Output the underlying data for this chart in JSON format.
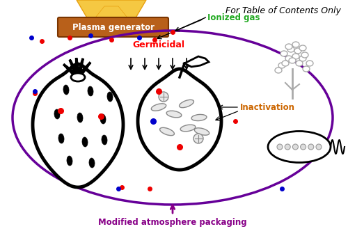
{
  "fig_width": 5.0,
  "fig_height": 3.29,
  "dpi": 100,
  "bg_color": "#ffffff",
  "title_text": "For Table of Contents Only",
  "title_color": "#000000",
  "title_fontsize": 9,
  "plasma_box_text": "Plasma generator",
  "plasma_box_facecolor": "#B8601A",
  "plasma_box_textcolor": "#ffffff",
  "ionized_gas_text": "Ionized gas",
  "ionized_gas_color": "#22AA22",
  "germicidal_text": "Germicidal",
  "germicidal_color": "#FF0000",
  "inactivation_text": "Inactivation",
  "inactivation_color": "#CC6600",
  "map_text": "Modified atmosphere packaging",
  "map_color": "#880088",
  "ellipse_color": "#660099",
  "red_dot_color": "#EE0000",
  "blue_dot_color": "#0000CC",
  "lw_fruit": 3.5,
  "lw_ellipse": 2.5
}
